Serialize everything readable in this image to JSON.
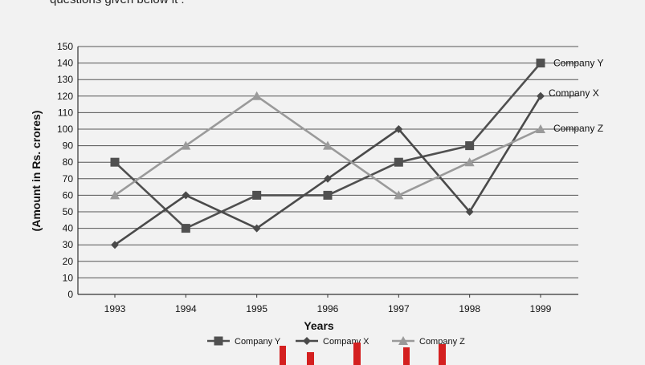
{
  "page": {
    "top_text": "questions given below it :"
  },
  "chart_data": {
    "type": "line",
    "categories": [
      "1993",
      "1994",
      "1995",
      "1996",
      "1997",
      "1998",
      "1999"
    ],
    "xlabel": "Years",
    "ylabel": "(Amount in Rs. crores)",
    "ylim": [
      0,
      150
    ],
    "yticks": [
      0,
      10,
      20,
      30,
      40,
      50,
      60,
      70,
      80,
      90,
      100,
      110,
      120,
      130,
      140,
      150
    ],
    "grid": "horizontal",
    "legend_position": "bottom",
    "series": [
      {
        "name": "Company Y",
        "values": [
          80,
          40,
          60,
          60,
          80,
          90,
          140
        ],
        "marker": "square",
        "color": "#505050"
      },
      {
        "name": "Company X",
        "values": [
          30,
          60,
          40,
          70,
          100,
          50,
          120
        ],
        "marker": "diamond",
        "color": "#4a4a4a"
      },
      {
        "name": "Company Z",
        "values": [
          60,
          90,
          120,
          90,
          60,
          80,
          100
        ],
        "marker": "triangle",
        "color": "#9a9a9a"
      }
    ]
  },
  "colors": {
    "background": "#f2f2f2",
    "grid": "#555555",
    "red_overlay": "#d42020"
  }
}
